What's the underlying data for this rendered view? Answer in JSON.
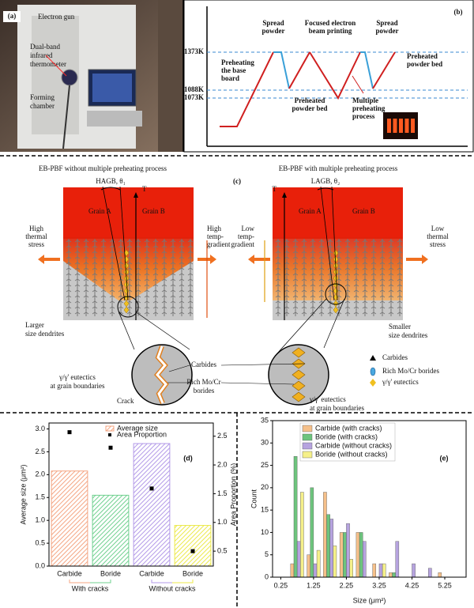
{
  "panel_a": {
    "label": "(a)",
    "annotations": [
      [
        "Electron gun"
      ],
      [
        "Dual-band",
        "infrared",
        "thermometer"
      ],
      [
        "Forming",
        "chamber"
      ]
    ]
  },
  "panel_b": {
    "label": "(b)",
    "temperatures": [
      "1373K",
      "1088K",
      "1073K"
    ],
    "annotations": [
      [
        "Preheating",
        "the base",
        "board"
      ],
      [
        "Spread",
        "powder"
      ],
      [
        "Focused electron",
        "beam printing"
      ],
      [
        "Spread",
        "powder"
      ],
      [
        "Preheated",
        "powder bed"
      ],
      [
        "Preheated",
        "powder bed"
      ],
      [
        "Multiple",
        "preheating",
        "process"
      ]
    ]
  },
  "panel_c": {
    "label": "(c)",
    "titles": [
      "EB-PBF without multiple preheating process",
      "EB-PBF with multiple preheating process"
    ],
    "angles": [
      "HAGB, θ₁",
      "LAGB, θ₂"
    ],
    "axis": "T",
    "grains": [
      "Grain A",
      "Grain B"
    ],
    "left_notes": [
      [
        "High",
        "thermal",
        "stress"
      ],
      [
        "High",
        "temp-",
        "gradient"
      ],
      [
        "Larger",
        "size dendrites"
      ]
    ],
    "right_notes": [
      [
        "Low",
        "temp-",
        "gradient"
      ],
      [
        "Low",
        "thermal",
        "stress"
      ],
      [
        "Smaller",
        "size dendrites"
      ]
    ],
    "inset_notes": [
      [
        "γ/γ' eutectics",
        "at grain boundaries"
      ],
      [
        "Crack"
      ],
      [
        "Carbides"
      ],
      [
        "Rich Mo/Cr",
        "borides"
      ],
      [
        "γ/γ' eutectics",
        "at grain boundaries"
      ]
    ],
    "legend": [
      "Carbides",
      "Rich Mo/Cr borides",
      "γ/γ' eutectics"
    ]
  },
  "chart_data": [
    {
      "type": "bar",
      "title": "(d)",
      "categories": [
        "Carbide",
        "Boride",
        "Carbide",
        "Boride"
      ],
      "groups": [
        "With cracks",
        "Without cracks"
      ],
      "series": [
        {
          "name": "Average size",
          "colors": [
            "#f4a582",
            "#6fd08f",
            "#b39ae8",
            "#ece94a"
          ],
          "values": [
            2.08,
            1.55,
            2.68,
            0.89
          ]
        },
        {
          "name": "Area Proportion",
          "type": "scatter",
          "axis": "y2",
          "color": "#000000",
          "values": [
            2.57,
            2.3,
            1.59,
            0.5
          ]
        }
      ],
      "ylabel": "Average size (μm²)",
      "y2label": "Area Proportion (%)",
      "ylim": [
        0,
        3.13
      ],
      "yticks": [
        {
          "value": 0,
          "label": "0.0"
        },
        0.5,
        {
          "value": 1,
          "label": "1.0"
        },
        1.5,
        {
          "value": 2,
          "label": "2.0"
        },
        2.5,
        {
          "value": 3,
          "label": "3.0"
        }
      ],
      "y2lim": [
        0.24,
        2.73
      ],
      "y2ticks": [
        0.5,
        {
          "value": 1,
          "label": "1.0"
        },
        1.5,
        {
          "value": 2,
          "label": "2.0"
        },
        2.5
      ],
      "legend": "upper center"
    },
    {
      "type": "bar",
      "title": "(e)",
      "x": [
        0.75,
        1.25,
        1.75,
        2.25,
        2.75,
        3.25,
        3.75,
        4.25,
        4.75,
        5.25
      ],
      "series": [
        {
          "name": "Carbide (with cracks)",
          "color": "#f5c08a",
          "values": [
            3,
            5,
            19,
            10,
            10,
            3,
            1,
            0,
            0,
            1
          ]
        },
        {
          "name": "Boride (with cracks)",
          "color": "#6dc47d",
          "values": [
            27,
            20,
            14,
            10,
            10,
            0,
            1,
            0,
            0,
            0
          ]
        },
        {
          "name": "Carbide (without cracks)",
          "color": "#b6a3df",
          "values": [
            8,
            3,
            13,
            12,
            8,
            3,
            8,
            3,
            2,
            0
          ]
        },
        {
          "name": "Boride (without cracks)",
          "color": "#f5f08a",
          "values": [
            19,
            6,
            7,
            4,
            0,
            3,
            0,
            0,
            0,
            0
          ]
        }
      ],
      "xlabel": "Size (μm²)",
      "ylabel": "Count",
      "xlim": [
        0,
        5.9
      ],
      "xticks": [
        0.25,
        1.25,
        2.25,
        3.25,
        4.25,
        5.25
      ],
      "ylim": [
        0,
        35
      ],
      "yticks": [
        0,
        5,
        10,
        15,
        20,
        25,
        30,
        35
      ],
      "legend": "upper left"
    }
  ]
}
